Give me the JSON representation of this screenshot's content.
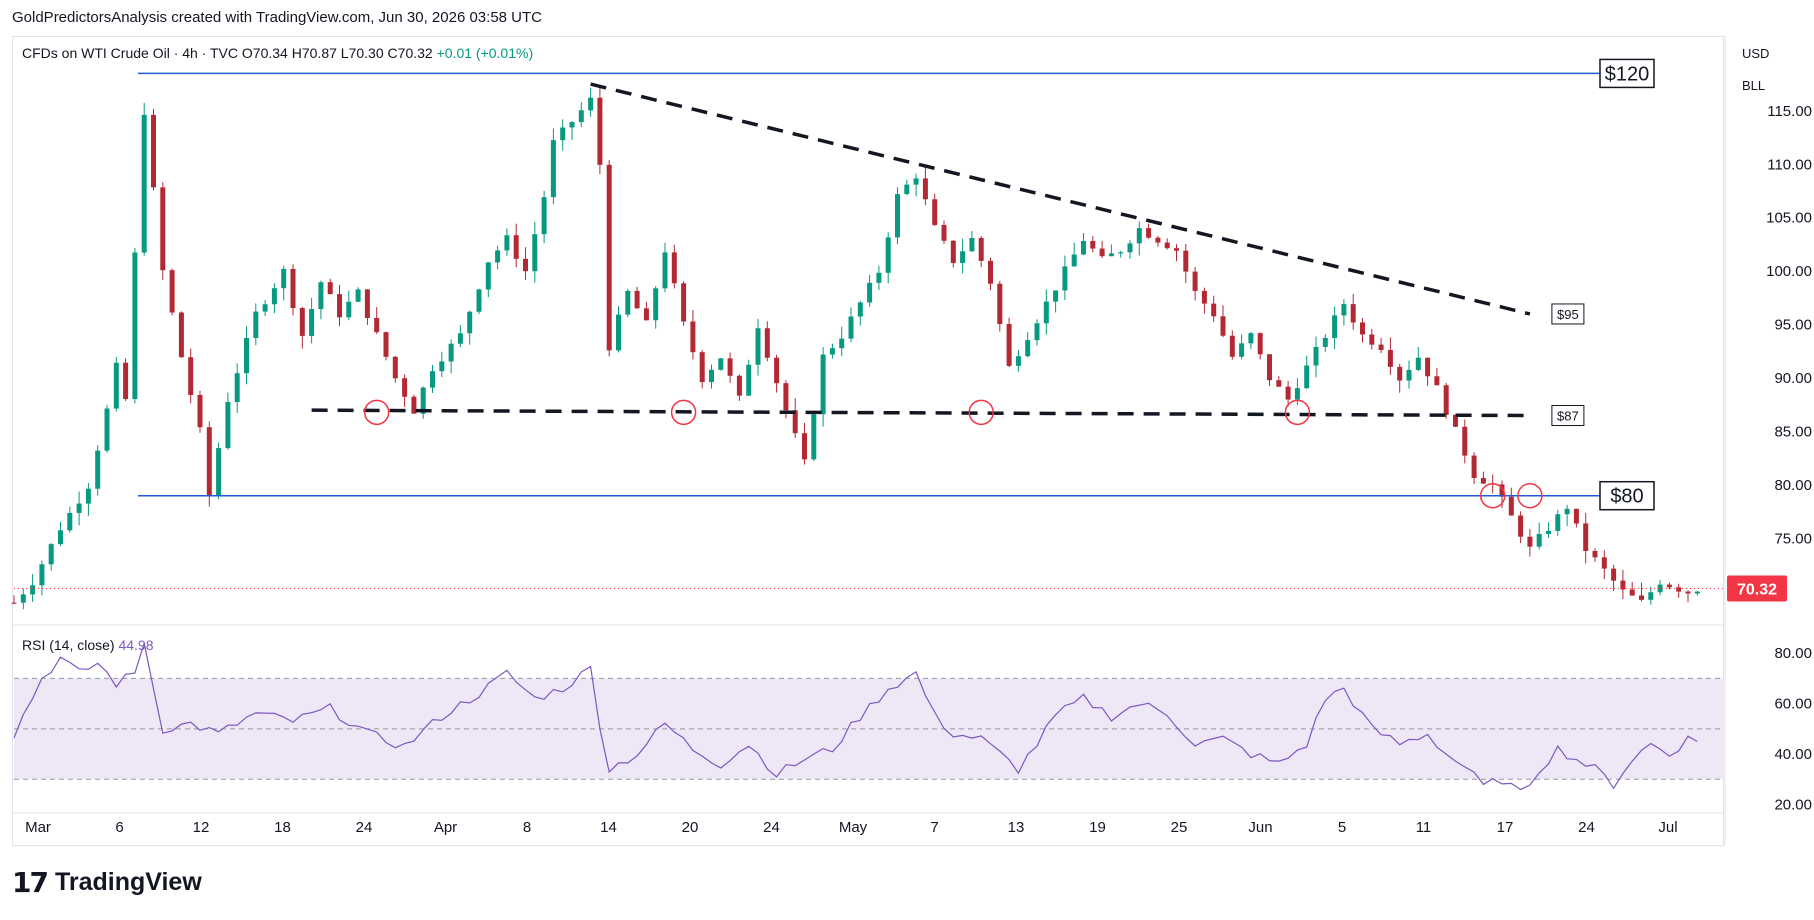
{
  "header": {
    "attribution": "GoldPredictorsAnalysis created with TradingView.com, Jun 30, 2026 03:58 UTC"
  },
  "legend": {
    "symbol": "CFDs on WTI Crude Oil · 4h · TVC",
    "open_label": "O",
    "open": "70.34",
    "high_label": "H",
    "high": "70.87",
    "low_label": "L",
    "low": "70.30",
    "close_label": "C",
    "close": "70.32",
    "change": "+0.01 (+0.01%)"
  },
  "scale": {
    "currency": "USD",
    "unit": "BLL"
  },
  "rsi_legend": {
    "label": "RSI (14, close)",
    "value": "44.98"
  },
  "brand": {
    "name": "TradingView"
  },
  "colors": {
    "up": "#089981",
    "down": "#b22833",
    "blue_line": "#1e5bd6",
    "rsi": "#7e57c2",
    "rsi_band": "#ede7f6",
    "price_tag": "#f23645",
    "circle": "#f23645",
    "grid": "#e0e3eb"
  },
  "chart_data": [
    {
      "type": "candlestick",
      "title": "CFDs on WTI Crude Oil · 4h · TVC",
      "ylim": [
        67,
        122
      ],
      "y_ticks": [
        "115.00",
        "110.00",
        "105.00",
        "100.00",
        "95.00",
        "90.00",
        "85.00",
        "80.00",
        "75.00"
      ],
      "x_ticks": [
        "Mar",
        "6",
        "12",
        "18",
        "24",
        "Apr",
        "8",
        "14",
        "20",
        "24",
        "May",
        "7",
        "13",
        "19",
        "25",
        "Jun",
        "5",
        "11",
        "17",
        "24",
        "Jul"
      ],
      "last_price": "70.32",
      "path": [
        [
          0,
          69
        ],
        [
          2,
          71
        ],
        [
          5,
          76
        ],
        [
          8,
          80
        ],
        [
          10,
          87
        ],
        [
          11,
          91
        ],
        [
          12,
          88
        ],
        [
          14,
          115
        ],
        [
          16,
          100
        ],
        [
          18,
          92
        ],
        [
          20,
          85
        ],
        [
          21,
          79
        ],
        [
          23,
          88
        ],
        [
          26,
          96
        ],
        [
          29,
          100
        ],
        [
          31,
          94
        ],
        [
          33,
          99
        ],
        [
          35,
          96
        ],
        [
          37,
          98
        ],
        [
          39,
          94
        ],
        [
          41,
          90
        ],
        [
          43,
          87
        ],
        [
          45,
          91
        ],
        [
          48,
          94
        ],
        [
          51,
          101
        ],
        [
          53,
          103
        ],
        [
          55,
          100
        ],
        [
          57,
          107
        ],
        [
          58,
          112
        ],
        [
          60,
          114
        ],
        [
          62,
          116
        ],
        [
          63,
          110
        ],
        [
          64,
          93
        ],
        [
          66,
          98
        ],
        [
          68,
          95
        ],
        [
          70,
          102
        ],
        [
          72,
          95
        ],
        [
          74,
          90
        ],
        [
          76,
          92
        ],
        [
          78,
          88
        ],
        [
          80,
          95
        ],
        [
          83,
          87
        ],
        [
          85,
          82
        ],
        [
          87,
          92
        ],
        [
          89,
          94
        ],
        [
          91,
          97
        ],
        [
          93,
          100
        ],
        [
          95,
          107
        ],
        [
          97,
          109
        ],
        [
          99,
          104
        ],
        [
          101,
          101
        ],
        [
          103,
          103
        ],
        [
          105,
          99
        ],
        [
          107,
          91
        ],
        [
          109,
          94
        ],
        [
          111,
          97
        ],
        [
          113,
          100
        ],
        [
          115,
          103
        ],
        [
          117,
          101
        ],
        [
          119,
          102
        ],
        [
          121,
          104
        ],
        [
          123,
          103
        ],
        [
          125,
          102
        ],
        [
          127,
          98
        ],
        [
          129,
          96
        ],
        [
          131,
          92
        ],
        [
          133,
          94
        ],
        [
          135,
          90
        ],
        [
          137,
          88
        ],
        [
          139,
          91
        ],
        [
          141,
          94
        ],
        [
          143,
          97
        ],
        [
          145,
          94
        ],
        [
          147,
          93
        ],
        [
          149,
          90
        ],
        [
          151,
          92
        ],
        [
          153,
          89
        ],
        [
          155,
          85
        ],
        [
          157,
          81
        ],
        [
          159,
          80
        ],
        [
          161,
          77
        ],
        [
          163,
          74
        ],
        [
          165,
          76
        ],
        [
          167,
          78
        ],
        [
          169,
          74
        ],
        [
          171,
          72
        ],
        [
          173,
          70
        ],
        [
          175,
          69
        ],
        [
          177,
          71
        ],
        [
          180,
          70
        ],
        [
          181,
          70.32
        ]
      ],
      "annotations": {
        "horizontal_lines": [
          {
            "label": "$120",
            "value": 118.5
          },
          {
            "label": "$80",
            "value": 79
          }
        ],
        "dashed_lines": [
          {
            "label": "$95",
            "from": [
              62,
              117.5
            ],
            "to": [
              163,
              96
            ]
          },
          {
            "label": "$87",
            "from": [
              32,
              87
            ],
            "to": [
              163,
              86.5
            ]
          }
        ],
        "circles": [
          [
            39,
            86.8
          ],
          [
            72,
            86.8
          ],
          [
            104,
            86.8
          ],
          [
            138,
            86.8
          ],
          [
            159,
            79
          ],
          [
            163,
            79
          ]
        ]
      }
    },
    {
      "type": "line",
      "title": "RSI (14, close)",
      "ylim": [
        17,
        90
      ],
      "y_ticks": [
        "80.00",
        "60.00",
        "40.00",
        "20.00"
      ],
      "bands": [
        30,
        50,
        70
      ],
      "last_value": "44.98",
      "path": [
        [
          0,
          48
        ],
        [
          3,
          70
        ],
        [
          5,
          78
        ],
        [
          7,
          72
        ],
        [
          9,
          76
        ],
        [
          11,
          68
        ],
        [
          13,
          72
        ],
        [
          14,
          85
        ],
        [
          15,
          66
        ],
        [
          16,
          50
        ],
        [
          19,
          52
        ],
        [
          22,
          48
        ],
        [
          26,
          56
        ],
        [
          30,
          53
        ],
        [
          34,
          58
        ],
        [
          38,
          48
        ],
        [
          42,
          43
        ],
        [
          46,
          55
        ],
        [
          50,
          64
        ],
        [
          53,
          72
        ],
        [
          56,
          62
        ],
        [
          59,
          66
        ],
        [
          62,
          74
        ],
        [
          63,
          52
        ],
        [
          64,
          34
        ],
        [
          67,
          40
        ],
        [
          70,
          52
        ],
        [
          73,
          42
        ],
        [
          76,
          36
        ],
        [
          79,
          44
        ],
        [
          82,
          32
        ],
        [
          85,
          38
        ],
        [
          88,
          42
        ],
        [
          91,
          55
        ],
        [
          94,
          66
        ],
        [
          97,
          72
        ],
        [
          99,
          55
        ],
        [
          101,
          48
        ],
        [
          104,
          46
        ],
        [
          106,
          40
        ],
        [
          108,
          34
        ],
        [
          110,
          44
        ],
        [
          112,
          55
        ],
        [
          115,
          62
        ],
        [
          118,
          55
        ],
        [
          121,
          60
        ],
        [
          124,
          56
        ],
        [
          127,
          44
        ],
        [
          130,
          46
        ],
        [
          133,
          40
        ],
        [
          136,
          36
        ],
        [
          139,
          44
        ],
        [
          141,
          62
        ],
        [
          143,
          66
        ],
        [
          146,
          50
        ],
        [
          149,
          44
        ],
        [
          152,
          48
        ],
        [
          154,
          40
        ],
        [
          156,
          35
        ],
        [
          158,
          27
        ],
        [
          160,
          30
        ],
        [
          162,
          24
        ],
        [
          164,
          34
        ],
        [
          166,
          42
        ],
        [
          168,
          38
        ],
        [
          170,
          34
        ],
        [
          172,
          28
        ],
        [
          174,
          38
        ],
        [
          176,
          44
        ],
        [
          178,
          40
        ],
        [
          180,
          46
        ],
        [
          181,
          44.98
        ]
      ]
    }
  ]
}
